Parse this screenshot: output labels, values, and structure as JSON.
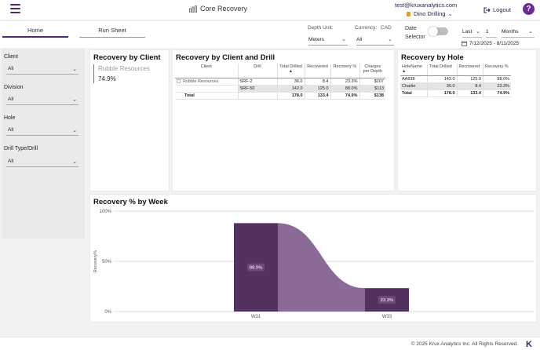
{
  "header": {
    "app_title": "Core Recovery",
    "user_email": "test@kruxanalytics.com",
    "company": "Dino Drilling",
    "logout_label": "Logout",
    "help_label": "?"
  },
  "nav": {
    "tabs": [
      {
        "label": "Home"
      },
      {
        "label": "Run Sheet"
      }
    ],
    "depth_unit_label": "Depth Unit:",
    "depth_unit_value": "Meters",
    "currency_label": "Currency:",
    "currency_code": "CAD",
    "currency_value": "All",
    "date_selector_label": "Date Selector",
    "date_mode": "Last",
    "date_count": "1",
    "date_period": "Months",
    "date_range": "7/12/2025 - 8/11/2025"
  },
  "filters": [
    {
      "label": "Client",
      "value": "All"
    },
    {
      "label": "Division",
      "value": "All"
    },
    {
      "label": "Hole",
      "value": "All"
    },
    {
      "label": "Drill Type/Drill",
      "value": "All"
    }
  ],
  "kpi": {
    "title": "Recovery by Client",
    "client": "Rubble Resources",
    "value": "74.9%"
  },
  "client_drill_table": {
    "title": "Recovery by Client and Drill",
    "headers": [
      "Client",
      "Drill",
      "Total Drilled",
      "Recovered",
      "Recovery %",
      "Charges per Depth"
    ],
    "rows": [
      {
        "client": "Rubble Resources",
        "drill": "SRF-2",
        "total": "36.0",
        "recovered": "8.4",
        "pct": "23.3%",
        "charges": "$207"
      },
      {
        "client": "",
        "drill": "SRF-50",
        "total": "142.0",
        "recovered": "125.0",
        "pct": "88.0%",
        "charges": "$113"
      }
    ],
    "total": {
      "label": "Total",
      "total": "178.0",
      "recovered": "133.4",
      "pct": "74.9%",
      "charges": "$138"
    }
  },
  "hole_table": {
    "title": "Recovery by Hole",
    "headers": [
      "HoleName",
      "Total Drilled",
      "Recovered",
      "Recovery %"
    ],
    "rows": [
      {
        "hole": "AA838",
        "total": "142.0",
        "recovered": "125.0",
        "pct": "88.0%"
      },
      {
        "hole": "Charlie",
        "total": "36.0",
        "recovered": "8.4",
        "pct": "23.3%"
      }
    ],
    "total": {
      "label": "Total",
      "total": "178.0",
      "recovered": "133.4",
      "pct": "74.9%"
    }
  },
  "chart_data": {
    "type": "bar",
    "title": "Recovery % by Week",
    "ylabel": "Recovery%",
    "xlabel": "",
    "categories": [
      "W31",
      "W33"
    ],
    "values": [
      88.0,
      23.3
    ],
    "data_labels": [
      "88.0%",
      "23.3%"
    ],
    "ylim": [
      0,
      100
    ],
    "yticks": [
      "0%",
      "50%",
      "100%"
    ],
    "grid": true,
    "bar_color": "#54325f",
    "ribbon_color": "#8a6a96"
  },
  "footer": {
    "copyright": "© 2025 Krux Analytics Inc. All Rights Reserved.",
    "logo": "K"
  }
}
